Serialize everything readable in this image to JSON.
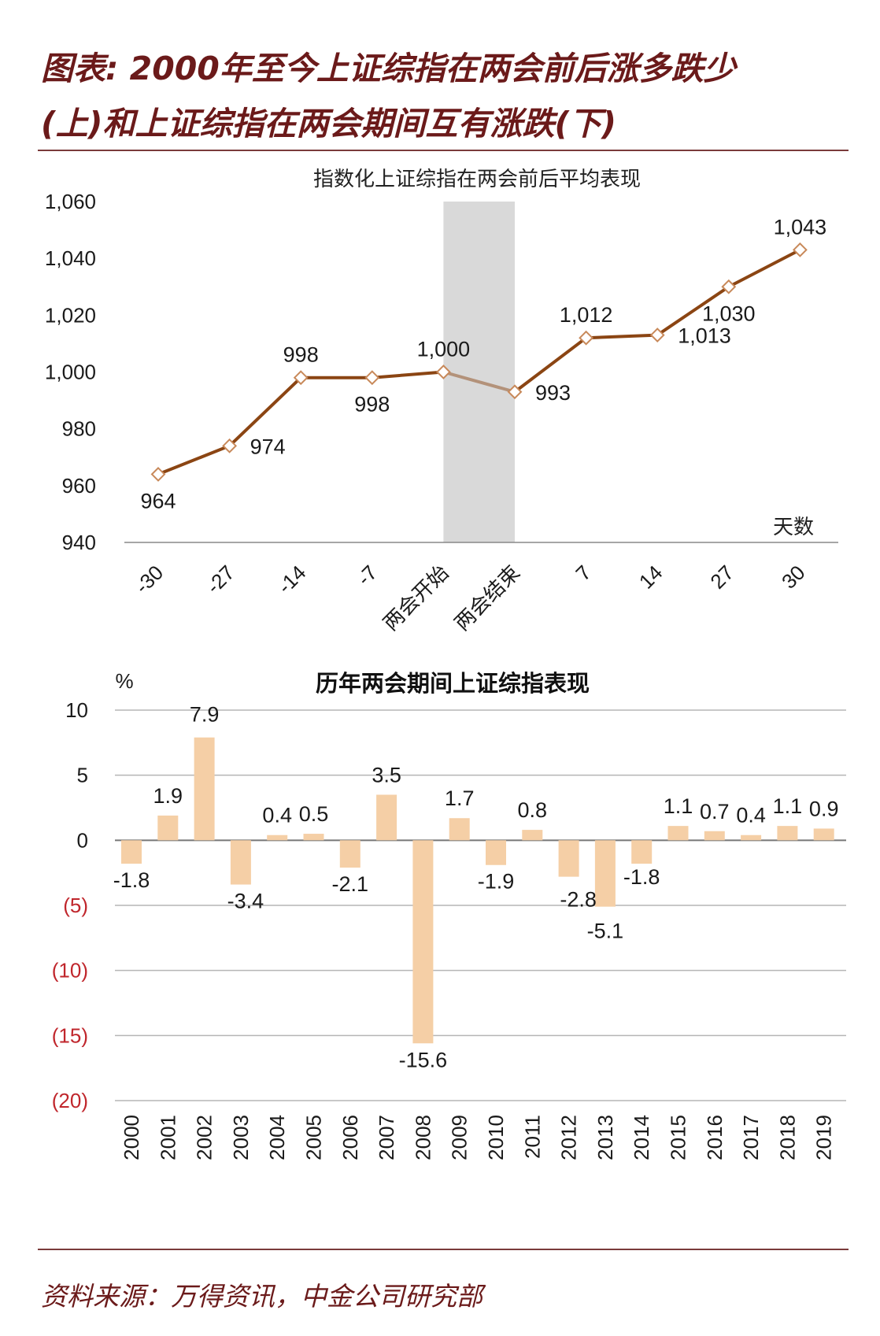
{
  "title_lines": [
    "图表: 2000年至今上证综指在两会前后涨多跌少",
    "(上)和上证综指在两会期间互有涨跌(下)"
  ],
  "source": "资料来源：万得资讯，中金公司研究部",
  "colors": {
    "line": "#8b4513",
    "line_faded": "#b3927a",
    "marker_fill": "#ffffff",
    "marker_edge": "#c8895a",
    "shade": "#d9d9d9",
    "bar": "#f5cfa6",
    "title": "#6b1a1a",
    "neg_tick": "#c0262c"
  },
  "chart_data": [
    {
      "type": "line",
      "title": "指数化上证综指在两会前后平均表现",
      "xlabel": "天数",
      "ylabel": "",
      "ylim": [
        940,
        1060
      ],
      "yticks": [
        "940",
        "960",
        "980",
        "1,000",
        "1,020",
        "1,040",
        "1,060"
      ],
      "ytick_values": [
        940,
        960,
        980,
        1000,
        1020,
        1040,
        1060
      ],
      "categories": [
        "-30",
        "-27",
        "-14",
        "-7",
        "两会开始",
        "两会结束",
        "7",
        "14",
        "27",
        "30"
      ],
      "values": [
        964,
        974,
        998,
        998,
        1000,
        993,
        1012,
        1013,
        1030,
        1043
      ],
      "labels": [
        "964",
        "974",
        "998",
        "998",
        "1,000",
        "993",
        "1,012",
        "1,013",
        "1,030",
        "1,043"
      ],
      "label_pos": [
        "below",
        "right",
        "above",
        "below",
        "above",
        "right",
        "above",
        "right",
        "below",
        "above"
      ],
      "shaded_between": [
        "两会开始",
        "两会结束"
      ],
      "grid": false
    },
    {
      "type": "bar",
      "title": "历年两会期间上证综指表现",
      "ylabel": "%",
      "ylim": [
        -20,
        10
      ],
      "yticks": [
        "10",
        "5",
        "0",
        "(5)",
        "(10)",
        "(15)",
        "(20)"
      ],
      "ytick_values": [
        10,
        5,
        0,
        -5,
        -10,
        -15,
        -20
      ],
      "categories": [
        "2000",
        "2001",
        "2002",
        "2003",
        "2004",
        "2005",
        "2006",
        "2007",
        "2008",
        "2009",
        "2010",
        "2011",
        "2012",
        "2013",
        "2014",
        "2015",
        "2016",
        "2017",
        "2018",
        "2019"
      ],
      "values": [
        -1.8,
        1.9,
        7.9,
        -3.4,
        0.4,
        0.5,
        -2.1,
        3.5,
        -15.6,
        1.7,
        -1.9,
        0.8,
        -2.8,
        -5.1,
        -1.8,
        1.1,
        0.7,
        0.4,
        1.1,
        0.9
      ],
      "labels": [
        "-1.8",
        "1.9",
        "7.9",
        "-3.4",
        "0.4",
        "0.5",
        "-2.1",
        "3.5",
        "-15.6",
        "1.7",
        "-1.9",
        "0.8",
        "-2.8",
        "-5.1",
        "-1.8",
        "1.1",
        "0.7",
        "0.4",
        "1.1",
        "0.9"
      ],
      "grid": true
    }
  ]
}
